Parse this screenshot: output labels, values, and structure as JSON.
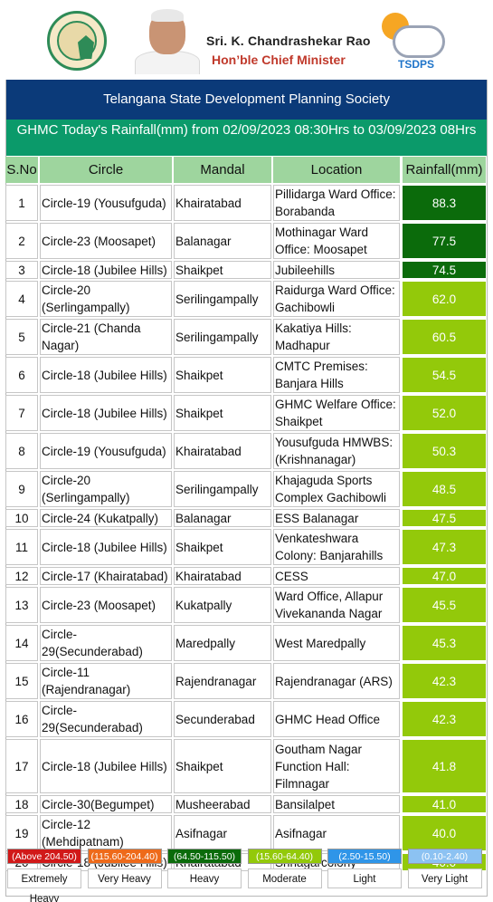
{
  "header": {
    "cm_name": "Sri. K. Chandrashekar Rao",
    "cm_title": "Hon’ble Chief Minister",
    "logo_text": "TSDPS",
    "org_title": "Telangana State Development Planning Society",
    "subtitle": "GHMC Today's Rainfall(mm) from 02/09/2023 08:30Hrs to 03/09/2023 08Hrs"
  },
  "columns": [
    "S.No",
    "Circle",
    "Mandal",
    "Location",
    "Rainfall(mm)"
  ],
  "rows": [
    {
      "sno": "1",
      "circle": "Circle-19 (Yousufguda)",
      "mandal": "Khairatabad",
      "location": "Pillidarga Ward Office: Borabanda",
      "rainfall": "88.3",
      "category": "Heavy"
    },
    {
      "sno": "2",
      "circle": "Circle-23 (Moosapet)",
      "mandal": "Balanagar",
      "location": "Mothinagar Ward Office: Moosapet",
      "rainfall": "77.5",
      "category": "Heavy"
    },
    {
      "sno": "3",
      "circle": "Circle-18 (Jubilee Hills)",
      "mandal": "Shaikpet",
      "location": "Jubileehills",
      "rainfall": "74.5",
      "category": "Heavy"
    },
    {
      "sno": "4",
      "circle": "Circle-20 (Serlingampally)",
      "mandal": "Serilingampally",
      "location": "Raidurga Ward Office: Gachibowli",
      "rainfall": "62.0",
      "category": "Moderate"
    },
    {
      "sno": "5",
      "circle": "Circle-21 (Chanda Nagar)",
      "mandal": "Serilingampally",
      "location": "Kakatiya Hills: Madhapur",
      "rainfall": "60.5",
      "category": "Moderate"
    },
    {
      "sno": "6",
      "circle": "Circle-18 (Jubilee Hills)",
      "mandal": "Shaikpet",
      "location": "CMTC Premises: Banjara Hills",
      "rainfall": "54.5",
      "category": "Moderate"
    },
    {
      "sno": "7",
      "circle": "Circle-18 (Jubilee Hills)",
      "mandal": "Shaikpet",
      "location": "GHMC Welfare Office: Shaikpet",
      "rainfall": "52.0",
      "category": "Moderate"
    },
    {
      "sno": "8",
      "circle": "Circle-19 (Yousufguda)",
      "mandal": "Khairatabad",
      "location": "Yousufguda HMWBS: (Krishnanagar)",
      "rainfall": "50.3",
      "category": "Moderate"
    },
    {
      "sno": "9",
      "circle": "Circle-20 (Serlingampally)",
      "mandal": "Serilingampally",
      "location": "Khajaguda Sports Complex Gachibowli",
      "rainfall": "48.5",
      "category": "Moderate"
    },
    {
      "sno": "10",
      "circle": "Circle-24 (Kukatpally)",
      "mandal": "Balanagar",
      "location": "ESS Balanagar",
      "rainfall": "47.5",
      "category": "Moderate"
    },
    {
      "sno": "11",
      "circle": "Circle-18 (Jubilee Hills)",
      "mandal": "Shaikpet",
      "location": "Venkateshwara Colony: Banjarahills",
      "rainfall": "47.3",
      "category": "Moderate"
    },
    {
      "sno": "12",
      "circle": "Circle-17 (Khairatabad)",
      "mandal": "Khairatabad",
      "location": "CESS",
      "rainfall": "47.0",
      "category": "Moderate"
    },
    {
      "sno": "13",
      "circle": "Circle-23 (Moosapet)",
      "mandal": "Kukatpally",
      "location": "Ward Office, Allapur Vivekananda Nagar",
      "rainfall": "45.5",
      "category": "Moderate"
    },
    {
      "sno": "14",
      "circle": "Circle-29(Secunderabad)",
      "mandal": "Maredpally",
      "location": "West Maredpally",
      "rainfall": "45.3",
      "category": "Moderate"
    },
    {
      "sno": "15",
      "circle": "Circle-11 (Rajendranagar)",
      "mandal": "Rajendranagar",
      "location": "Rajendranagar (ARS)",
      "rainfall": "42.3",
      "category": "Moderate"
    },
    {
      "sno": "16",
      "circle": "Circle-29(Secunderabad)",
      "mandal": "Secunderabad",
      "location": "GHMC Head Office",
      "rainfall": "42.3",
      "category": "Moderate"
    },
    {
      "sno": "17",
      "circle": "Circle-18 (Jubilee Hills)",
      "mandal": "Shaikpet",
      "location": "Goutham Nagar Function Hall: Filmnagar",
      "rainfall": "41.8",
      "category": "Moderate"
    },
    {
      "sno": "18",
      "circle": "Circle-30(Begumpet)",
      "mandal": "Musheerabad",
      "location": "Bansilalpet",
      "rainfall": "41.0",
      "category": "Moderate"
    },
    {
      "sno": "19",
      "circle": "Circle-12 (Mehdipatnam)",
      "mandal": "Asifnagar",
      "location": "Asifnagar",
      "rainfall": "40.0",
      "category": "Moderate"
    },
    {
      "sno": "20",
      "circle": "Circle-18 (Jubilee Hills)",
      "mandal": "Khairatabad",
      "location": "Srinagarcolony",
      "rainfall": "40.0",
      "category": "Moderate"
    }
  ],
  "legend": [
    {
      "range": "(Above 204.50)",
      "label": "Extremely Heavy",
      "color": "#d11919"
    },
    {
      "range": "(115.60-204.40)",
      "label": "Very Heavy",
      "color": "#ee6a1a"
    },
    {
      "range": "(64.50-115.50)",
      "label": "Heavy",
      "color": "#0b6b0b"
    },
    {
      "range": "(15.60-64.40)",
      "label": "Moderate",
      "color": "#93c90a"
    },
    {
      "range": "(2.50-15.50)",
      "label": "Light",
      "color": "#2f95e8"
    },
    {
      "range": "(0.10-2.40)",
      "label": "Very Light",
      "color": "#8cc2f2"
    }
  ],
  "colors": {
    "title_bar": "#0b3a79",
    "subtitle_bar": "#0b9a6a",
    "header_row": "#9ed59e"
  }
}
